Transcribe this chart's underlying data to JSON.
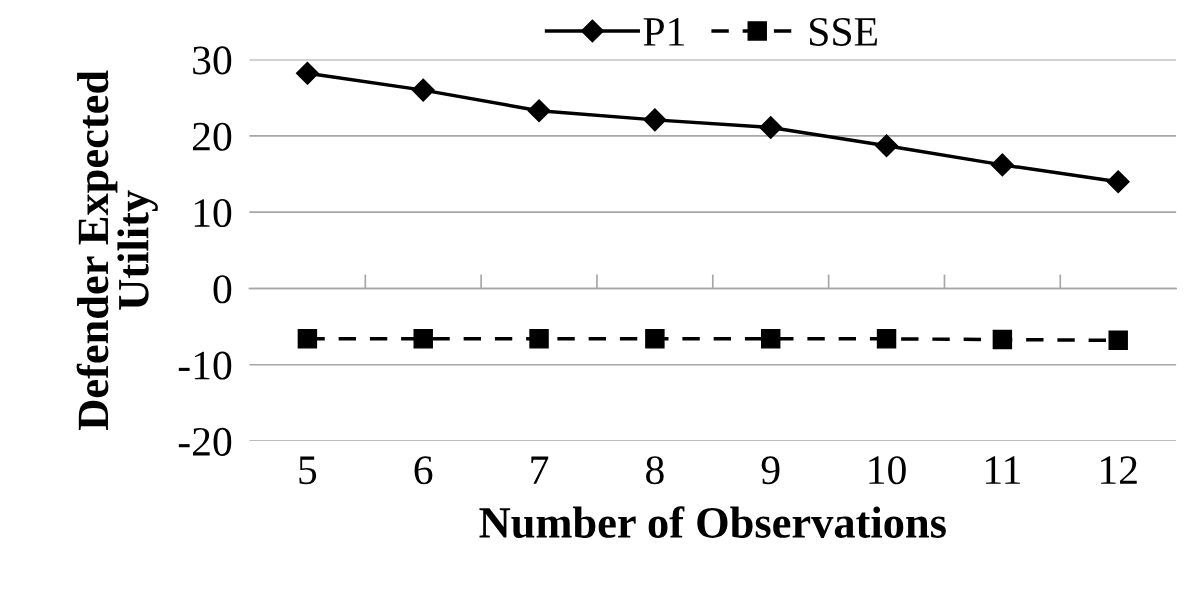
{
  "chart_data": {
    "type": "line",
    "xlabel": "Number of Observations",
    "ylabel": "Defender Expected\nUtility",
    "categories": [
      "5",
      "6",
      "7",
      "8",
      "9",
      "10",
      "11",
      "12"
    ],
    "series": [
      {
        "name": "P1",
        "color": "#000000",
        "marker": "diamond",
        "line_style": "solid",
        "values": [
          28.2,
          26.0,
          23.3,
          22.1,
          21.1,
          18.7,
          16.2,
          14.0
        ]
      },
      {
        "name": "SSE",
        "color": "#000000",
        "marker": "square",
        "line_style": "dashed",
        "values": [
          -6.6,
          -6.6,
          -6.6,
          -6.6,
          -6.6,
          -6.6,
          -6.7,
          -6.8
        ]
      }
    ],
    "ylim": [
      -20,
      30
    ],
    "yticks": [
      -20,
      -10,
      0,
      10,
      20,
      30
    ],
    "grid": "y",
    "legend": "top"
  }
}
